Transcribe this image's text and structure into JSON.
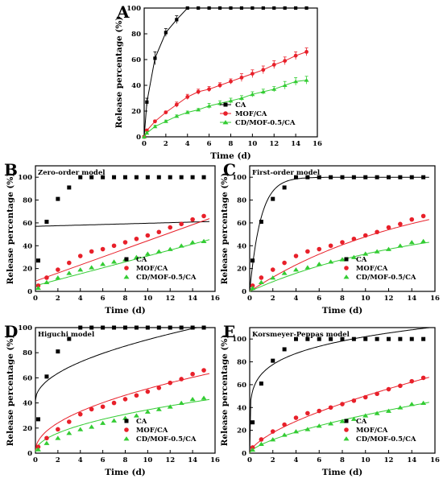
{
  "figure": {
    "colors": {
      "CA": "#000000",
      "MOF/CA": "#e8202a",
      "CD/MOF-0.5/CA": "#33cc33",
      "frame": "#000000"
    }
  },
  "chart_data": [
    {
      "panel_letter": "A",
      "type": "line",
      "title": "",
      "xlabel": "Time (d)",
      "ylabel": "Release percentage (%)",
      "xlim": [
        0,
        16
      ],
      "ylim": [
        0,
        100
      ],
      "xticks": [
        0,
        2,
        4,
        6,
        8,
        10,
        12,
        14,
        16
      ],
      "yticks": [
        0,
        20,
        40,
        60,
        80,
        100
      ],
      "legend_position": "bottom-right",
      "x": [
        0,
        0.25,
        1,
        2,
        3,
        4,
        5,
        6,
        7,
        8,
        9,
        10,
        11,
        12,
        13,
        14,
        15
      ],
      "series": [
        {
          "name": "CA",
          "marker": "square",
          "values": [
            0,
            27,
            61,
            81,
            91,
            100,
            100,
            100,
            100,
            100,
            100,
            100,
            100,
            100,
            100,
            100,
            100
          ],
          "errors": [
            0,
            3,
            5,
            3,
            3,
            0,
            0,
            0,
            0,
            0,
            0,
            0,
            0,
            0,
            0,
            0,
            0
          ]
        },
        {
          "name": "MOF/CA",
          "marker": "circle",
          "values": [
            0,
            5,
            12,
            19,
            25,
            31,
            35,
            37,
            40,
            43,
            46,
            49,
            52,
            56,
            59,
            63,
            66
          ],
          "errors": [
            0,
            1,
            1,
            1,
            2,
            2,
            2,
            2,
            2,
            2,
            3,
            3,
            3,
            3,
            3,
            3,
            3
          ]
        },
        {
          "name": "CD/MOF-0.5/CA",
          "marker": "triangle",
          "values": [
            0,
            3,
            8,
            12,
            16,
            19,
            21,
            24,
            26,
            28,
            30,
            33,
            35,
            37,
            40,
            43,
            44
          ],
          "errors": [
            0,
            1,
            1,
            1,
            1,
            1,
            1,
            2,
            2,
            2,
            2,
            2,
            2,
            2,
            3,
            3,
            3
          ]
        }
      ]
    },
    {
      "panel_letter": "B",
      "type": "scatter",
      "title": "Zero-order model",
      "xlabel": "Time (d)",
      "ylabel": "Release percentage (%)",
      "xlim": [
        0,
        16
      ],
      "ylim": [
        0,
        110
      ],
      "xticks": [
        0,
        2,
        4,
        6,
        8,
        10,
        12,
        14,
        16
      ],
      "yticks": [
        0,
        20,
        40,
        60,
        80,
        100
      ],
      "legend_position": "bottom-right",
      "x": [
        0.25,
        1,
        2,
        3,
        4,
        5,
        6,
        7,
        8,
        9,
        10,
        11,
        12,
        13,
        14,
        15
      ],
      "series": [
        {
          "name": "CA",
          "marker": "square",
          "values": [
            27,
            61,
            81,
            91,
            100,
            100,
            100,
            100,
            100,
            100,
            100,
            100,
            100,
            100,
            100,
            100
          ],
          "fit": [
            57,
            61
          ]
        },
        {
          "name": "MOF/CA",
          "marker": "circle",
          "values": [
            5,
            12,
            19,
            25,
            31,
            35,
            37,
            40,
            43,
            46,
            49,
            52,
            56,
            59,
            63,
            66
          ],
          "fit": [
            9,
            62
          ]
        },
        {
          "name": "CD/MOF-0.5/CA",
          "marker": "triangle",
          "values": [
            3,
            8,
            12,
            16,
            19,
            21,
            24,
            26,
            28,
            30,
            33,
            35,
            37,
            40,
            43,
            44
          ],
          "fit": [
            5,
            44
          ]
        }
      ]
    },
    {
      "panel_letter": "C",
      "type": "scatter",
      "title": "First-order model",
      "xlabel": "Time (d)",
      "ylabel": "Release percentage (%)",
      "xlim": [
        0,
        16
      ],
      "ylim": [
        0,
        110
      ],
      "xticks": [
        0,
        2,
        4,
        6,
        8,
        10,
        12,
        14,
        16
      ],
      "yticks": [
        0,
        20,
        40,
        60,
        80,
        100
      ],
      "legend_position": "bottom-right",
      "x": [
        0.25,
        1,
        2,
        3,
        4,
        5,
        6,
        7,
        8,
        9,
        10,
        11,
        12,
        13,
        14,
        15
      ],
      "series": [
        {
          "name": "CA",
          "marker": "square",
          "values": [
            27,
            61,
            81,
            91,
            100,
            100,
            100,
            100,
            100,
            100,
            100,
            100,
            100,
            100,
            100,
            100
          ],
          "fit_params": [
            100,
            1.05
          ]
        },
        {
          "name": "MOF/CA",
          "marker": "circle",
          "values": [
            5,
            12,
            19,
            25,
            31,
            35,
            37,
            40,
            43,
            46,
            49,
            52,
            56,
            59,
            63,
            66
          ],
          "fit_params": [
            95,
            0.07
          ]
        },
        {
          "name": "CD/MOF-0.5/CA",
          "marker": "triangle",
          "values": [
            3,
            8,
            12,
            16,
            19,
            21,
            24,
            26,
            28,
            30,
            33,
            35,
            37,
            40,
            43,
            44
          ],
          "fit_params": [
            65,
            0.07
          ]
        }
      ]
    },
    {
      "panel_letter": "D",
      "type": "scatter",
      "title": "Higuchi model",
      "xlabel": "Time (d)",
      "ylabel": "Release percentage (%)",
      "xlim": [
        0,
        16
      ],
      "ylim": [
        0,
        100
      ],
      "xticks": [
        0,
        2,
        4,
        6,
        8,
        10,
        12,
        14,
        16
      ],
      "yticks": [
        0,
        20,
        40,
        60,
        80,
        100
      ],
      "legend_position": "bottom-right",
      "x": [
        0.25,
        1,
        2,
        3,
        4,
        5,
        6,
        7,
        8,
        9,
        10,
        11,
        12,
        13,
        14,
        15
      ],
      "series": [
        {
          "name": "CA",
          "marker": "square",
          "values": [
            27,
            61,
            81,
            91,
            100,
            100,
            100,
            100,
            100,
            100,
            100,
            100,
            100,
            100,
            100,
            100
          ],
          "fit_params": [
            42,
            15.3
          ]
        },
        {
          "name": "MOF/CA",
          "marker": "circle",
          "values": [
            5,
            12,
            19,
            25,
            31,
            35,
            37,
            40,
            43,
            46,
            49,
            52,
            56,
            59,
            63,
            66
          ],
          "fit_params": [
            2,
            15.6
          ]
        },
        {
          "name": "CD/MOF-0.5/CA",
          "marker": "triangle",
          "values": [
            3,
            8,
            12,
            16,
            19,
            21,
            24,
            26,
            28,
            30,
            33,
            35,
            37,
            40,
            43,
            44
          ],
          "fit_params": [
            1,
            10.6
          ]
        }
      ]
    },
    {
      "panel_letter": "E",
      "type": "scatter",
      "title": "Korsmeyer-Peppas model",
      "xlabel": "Time (d)",
      "ylabel": "Release percentage (%)",
      "xlim": [
        0,
        16
      ],
      "ylim": [
        0,
        110
      ],
      "xticks": [
        0,
        2,
        4,
        6,
        8,
        10,
        12,
        14,
        16
      ],
      "yticks": [
        0,
        20,
        40,
        60,
        80,
        100
      ],
      "legend_position": "bottom-right",
      "x": [
        0.25,
        1,
        2,
        3,
        4,
        5,
        6,
        7,
        8,
        9,
        10,
        11,
        12,
        13,
        14,
        15
      ],
      "series": [
        {
          "name": "CA",
          "marker": "square",
          "values": [
            27,
            61,
            81,
            91,
            100,
            100,
            100,
            100,
            100,
            100,
            100,
            100,
            100,
            100,
            100,
            100
          ],
          "fit_params": [
            69,
            0.17
          ]
        },
        {
          "name": "MOF/CA",
          "marker": "circle",
          "values": [
            5,
            12,
            19,
            25,
            31,
            35,
            37,
            40,
            43,
            46,
            49,
            52,
            56,
            59,
            63,
            66
          ],
          "fit_params": [
            11.5,
            0.64
          ]
        },
        {
          "name": "CD/MOF-0.5/CA",
          "marker": "triangle",
          "values": [
            3,
            8,
            12,
            16,
            19,
            21,
            24,
            26,
            28,
            30,
            33,
            35,
            37,
            40,
            43,
            44
          ],
          "fit_params": [
            7.5,
            0.65
          ]
        }
      ]
    }
  ]
}
